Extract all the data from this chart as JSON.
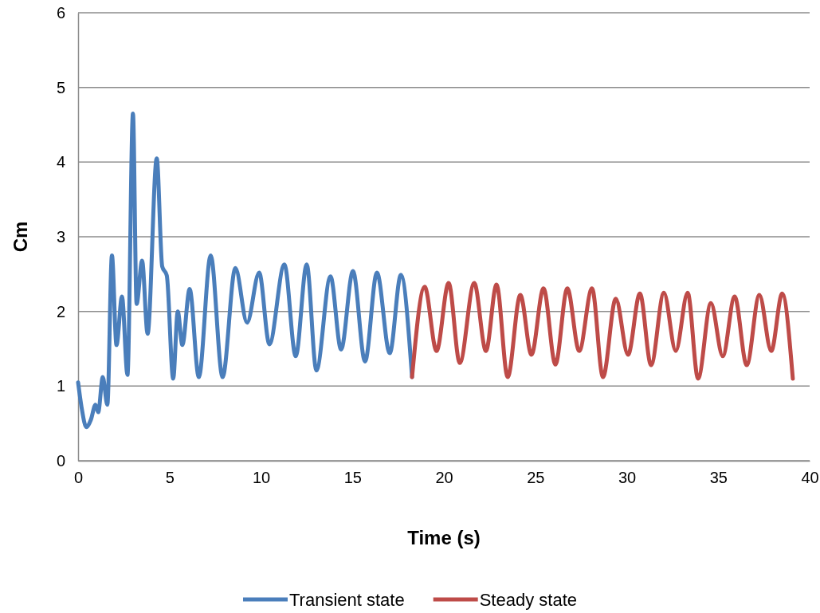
{
  "chart_data": {
    "type": "line",
    "xlabel": "Time (s)",
    "ylabel": "Cm",
    "xlim": [
      0,
      40
    ],
    "xticks": [
      0,
      5,
      10,
      15,
      20,
      25,
      30,
      35,
      40
    ],
    "ylim": [
      0,
      6
    ],
    "yticks": [
      0,
      1,
      2,
      3,
      4,
      5,
      6
    ],
    "grid": "y",
    "legend": "bottom",
    "marker": "none",
    "line_style": "solid",
    "series": [
      {
        "name": "Transient state",
        "color": "#4a7ebb",
        "x": [
          0,
          0.2,
          0.45,
          0.7,
          0.95,
          1.1,
          1.35,
          1.6,
          1.85,
          2.1,
          2.4,
          2.7,
          3.0,
          3.2,
          3.5,
          3.8,
          4.3,
          4.6,
          4.85,
          5.2,
          5.45,
          5.7,
          6.1,
          6.6,
          7.25,
          7.9,
          8.6,
          9.24,
          9.9,
          10.46,
          11.28,
          11.9,
          12.5,
          13.03,
          13.8,
          14.38,
          15.03,
          15.69,
          16.34,
          17.04,
          17.65,
          18.26
        ],
        "values": [
          1.05,
          0.7,
          0.45,
          0.55,
          0.75,
          0.65,
          1.12,
          0.75,
          2.75,
          1.55,
          2.2,
          1.15,
          4.65,
          2.1,
          2.68,
          1.7,
          4.05,
          2.6,
          2.48,
          1.1,
          2.0,
          1.55,
          2.3,
          1.12,
          2.75,
          1.12,
          2.58,
          1.85,
          2.52,
          1.56,
          2.63,
          1.4,
          2.63,
          1.21,
          2.47,
          1.49,
          2.54,
          1.33,
          2.52,
          1.44,
          2.49,
          1.12
        ]
      },
      {
        "name": "Steady state",
        "color": "#be4b48",
        "x": [
          18.26,
          18.95,
          19.6,
          20.26,
          20.87,
          21.66,
          22.3,
          22.88,
          23.49,
          24.18,
          24.79,
          25.45,
          26.1,
          26.75,
          27.4,
          28.1,
          28.7,
          29.4,
          30.07,
          30.72,
          31.33,
          32.03,
          32.68,
          33.33,
          33.9,
          34.6,
          35.25,
          35.9,
          36.56,
          37.25,
          37.9,
          38.5,
          39.08
        ],
        "values": [
          1.12,
          2.33,
          1.47,
          2.38,
          1.31,
          2.38,
          1.47,
          2.36,
          1.12,
          2.22,
          1.42,
          2.31,
          1.29,
          2.31,
          1.47,
          2.31,
          1.12,
          2.17,
          1.42,
          2.24,
          1.28,
          2.25,
          1.47,
          2.25,
          1.1,
          2.11,
          1.4,
          2.2,
          1.28,
          2.22,
          1.47,
          2.24,
          1.1
        ]
      }
    ]
  }
}
